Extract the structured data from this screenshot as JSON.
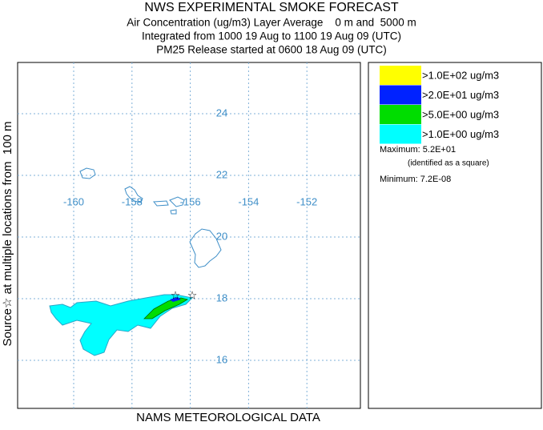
{
  "header": {
    "title": "NWS EXPERIMENTAL SMOKE FORECAST",
    "lines": [
      "Air Concentration (ug/m3) Layer Average    0 m and  5000 m",
      "Integrated from 1000 19 Aug to 1100 19 Aug 09 (UTC)",
      "PM25 Release started at 0600 18 Aug 09 (UTC)"
    ]
  },
  "map": {
    "side_label": "Source☆ at multiple locations from  100 m",
    "footer": "NAMS METEOROLOGICAL DATA",
    "longitudes": [
      -160,
      -158,
      -156,
      -154,
      -152
    ],
    "latitudes": [
      16,
      18,
      20,
      22,
      24
    ]
  },
  "legend": {
    "entries": [
      {
        "label": ">1.0E+02 ug/m3",
        "color": "#ffff00"
      },
      {
        "label": ">2.0E+01 ug/m3",
        "color": "#0022ff"
      },
      {
        "label": ">5.0E+00 ug/m3",
        "color": "#00dd00"
      },
      {
        "label": ">1.0E+00 ug/m3",
        "color": "#00ffff"
      }
    ],
    "maximum": "Maximum: 5.2E+01",
    "maximum_note": "(identified as a square)",
    "minimum": "Minimum: 7.2E-08"
  }
}
